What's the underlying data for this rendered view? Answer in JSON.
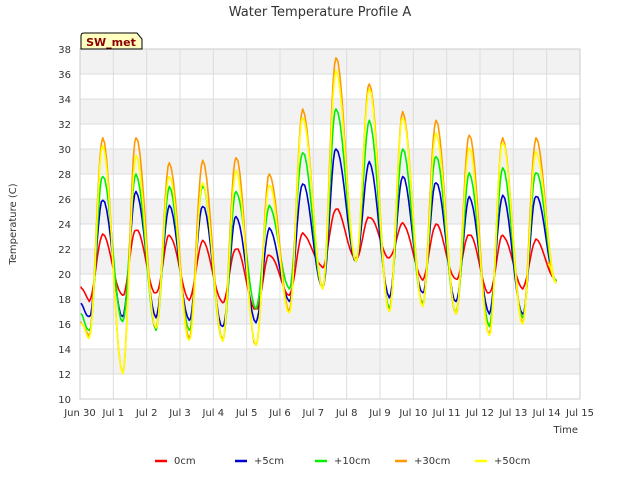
{
  "chart_data": {
    "type": "line",
    "title": "Water Temperature Profile A",
    "xlabel": "Time",
    "ylabel": "Temperature (C)",
    "ylim": [
      10,
      38
    ],
    "yticks": [
      10,
      12,
      14,
      16,
      18,
      20,
      22,
      24,
      26,
      28,
      30,
      32,
      34,
      36,
      38
    ],
    "xlim": [
      0,
      15
    ],
    "xticks": [
      0,
      1,
      2,
      3,
      4,
      5,
      6,
      7,
      8,
      9,
      10,
      11,
      12,
      13,
      14,
      15
    ],
    "xtick_labels": [
      "Jun 30",
      "Jul 1",
      "Jul 2",
      "Jul 3",
      "Jul 4",
      "Jul 5",
      "Jul 6",
      "Jul 7",
      "Jul 8",
      "Jul 9",
      "Jul 10",
      "Jul 11",
      "Jul 12",
      "Jul 13",
      "Jul 14",
      "Jul 15"
    ],
    "grid": true,
    "background_bands": true,
    "legend_position": "bottom",
    "annotation": "SW_met",
    "x_note": "Dates as day offsets from Jun 30; daily values listed as [min, max] per day from Jun 30 to Jul 14.",
    "series": [
      {
        "name": "0cm",
        "color": "#ff0000",
        "start": 19.0,
        "daily_min": [
          17.8,
          18.3,
          18.5,
          17.9,
          17.7,
          17.2,
          18.3,
          20.5,
          21.3,
          21.3,
          19.5,
          19.6,
          18.5,
          18.8,
          19.5
        ],
        "daily_max": [
          23.2,
          23.5,
          23.1,
          22.7,
          22.0,
          21.5,
          23.3,
          25.2,
          24.5,
          24.1,
          24.0,
          23.1,
          23.1,
          22.8,
          20.5
        ]
      },
      {
        "name": "+5cm",
        "color": "#0000cc",
        "start": 17.6,
        "daily_min": [
          16.6,
          16.6,
          16.5,
          16.3,
          15.8,
          16.1,
          17.8,
          19.0,
          21.0,
          18.1,
          18.5,
          17.8,
          16.8,
          16.8,
          19.5
        ],
        "daily_max": [
          25.9,
          26.6,
          25.5,
          25.4,
          24.6,
          23.7,
          27.2,
          30.0,
          29.0,
          27.8,
          27.3,
          26.2,
          26.3,
          26.2,
          20.8
        ]
      },
      {
        "name": "+10cm",
        "color": "#00ee00",
        "start": 16.8,
        "daily_min": [
          15.5,
          16.2,
          15.5,
          15.5,
          14.8,
          17.2,
          18.8,
          19.0,
          21.0,
          17.2,
          17.7,
          17.0,
          15.8,
          16.5,
          19.5
        ],
        "daily_max": [
          27.8,
          28.0,
          27.0,
          27.0,
          26.6,
          25.5,
          29.7,
          33.2,
          32.3,
          30.0,
          29.4,
          28.1,
          28.5,
          28.1,
          20.8
        ]
      },
      {
        "name": "+30cm",
        "color": "#ff9900",
        "start": 16.2,
        "daily_min": [
          15.0,
          12.1,
          15.7,
          14.8,
          14.7,
          14.3,
          17.0,
          18.8,
          21.0,
          17.0,
          17.4,
          16.8,
          15.2,
          16.0,
          19.3
        ],
        "daily_max": [
          30.9,
          30.9,
          28.9,
          29.1,
          29.3,
          28.0,
          33.2,
          37.3,
          35.2,
          33.0,
          32.3,
          31.1,
          30.9,
          30.9,
          21.0
        ]
      },
      {
        "name": "+50cm",
        "color": "#ffff00",
        "start": 16.0,
        "daily_min": [
          14.9,
          12.0,
          15.7,
          14.7,
          14.6,
          14.3,
          16.9,
          18.8,
          21.0,
          17.0,
          17.4,
          16.8,
          15.1,
          16.0,
          19.3
        ],
        "daily_max": [
          30.3,
          29.5,
          27.8,
          27.3,
          28.3,
          27.1,
          32.5,
          36.3,
          34.8,
          32.5,
          31.3,
          30.1,
          30.5,
          29.8,
          20.8
        ]
      }
    ]
  }
}
